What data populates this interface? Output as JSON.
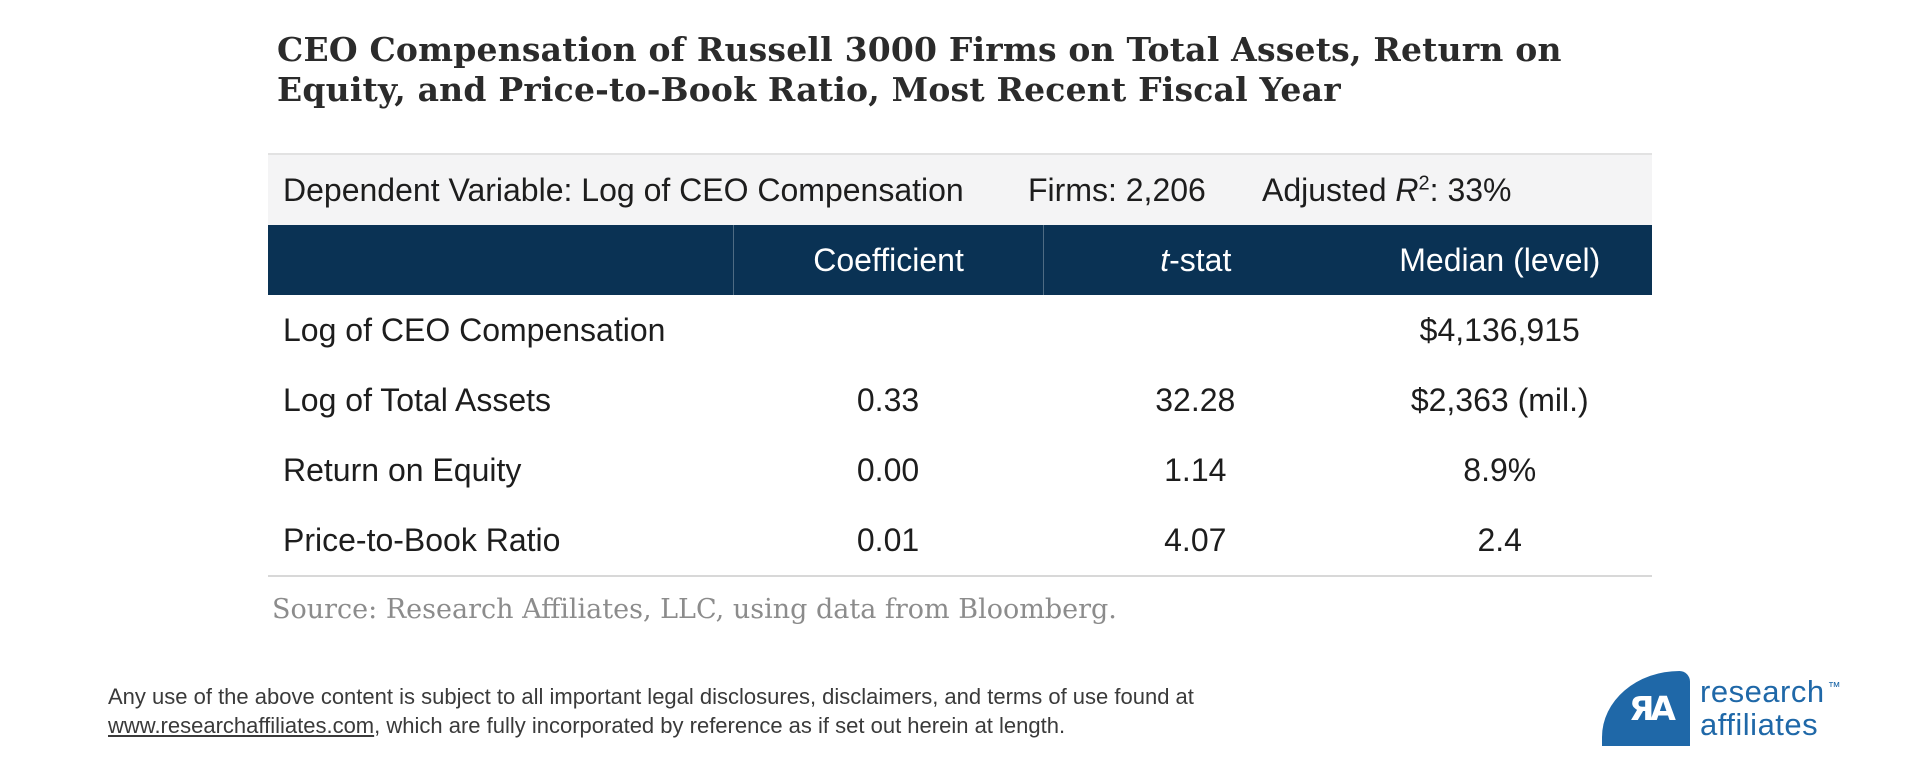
{
  "title": {
    "line1": "CEO Compensation of Russell 3000 Firms on Total Assets, Return on",
    "line2": "Equity, and Price-to-Book Ratio, Most Recent Fiscal Year"
  },
  "summary": {
    "dependent_variable": "Dependent Variable: Log of CEO Compensation",
    "firms": "Firms: 2,206",
    "adjusted_prefix": "Adjusted ",
    "r_symbol": "R",
    "r_sup": "2",
    "adjusted_suffix": ": 33%"
  },
  "table": {
    "columns": {
      "coefficient": "Coefficient",
      "t_stat_italic": "t",
      "t_stat_rest": "-stat",
      "median": "Median (level)"
    },
    "rows": [
      {
        "label": "Log of CEO Compensation",
        "coefficient": "",
        "t_stat": "",
        "median": "$4,136,915"
      },
      {
        "label": "Log of Total Assets",
        "coefficient": "0.33",
        "t_stat": "32.28",
        "median": "$2,363 (mil.)"
      },
      {
        "label": "Return on Equity",
        "coefficient": "0.00",
        "t_stat": "1.14",
        "median": "8.9%"
      },
      {
        "label": "Price-to-Book Ratio",
        "coefficient": "0.01",
        "t_stat": "4.07",
        "median": "2.4"
      }
    ]
  },
  "source": "Source: Research Affiliates, LLC, using data from Bloomberg.",
  "disclaimer": {
    "line1": "Any use of the above content is subject to all important legal disclosures, disclaimers, and terms of use found at",
    "link_text": "www.researchaffiliates.com",
    "line2_rest": ", which are fully incorporated by reference as if set out herein at length."
  },
  "logo": {
    "monogram": "ЯA",
    "line1": "research",
    "line2": "affiliates",
    "tm": "™"
  },
  "colors": {
    "navy": "#0a3254",
    "summary_bar_bg": "#f4f4f5",
    "logo_blue": "#1f68a8"
  },
  "chart_data": {
    "type": "table",
    "title": "CEO Compensation of Russell 3000 Firms on Total Assets, Return on Equity, and Price-to-Book Ratio, Most Recent Fiscal Year",
    "dependent_variable": "Log of CEO Compensation",
    "firms": "2,206",
    "adjusted_r2": "33%",
    "columns": [
      "",
      "Coefficient",
      "t-stat",
      "Median (level)"
    ],
    "rows": [
      [
        "Log of CEO Compensation",
        "",
        "",
        "$4,136,915"
      ],
      [
        "Log of Total Assets",
        "0.33",
        "32.28",
        "$2,363 (mil.)"
      ],
      [
        "Return on Equity",
        "0.00",
        "1.14",
        "8.9%"
      ],
      [
        "Price-to-Book Ratio",
        "0.01",
        "4.07",
        "2.4"
      ]
    ],
    "source": "Source: Research Affiliates, LLC, using data from Bloomberg."
  }
}
